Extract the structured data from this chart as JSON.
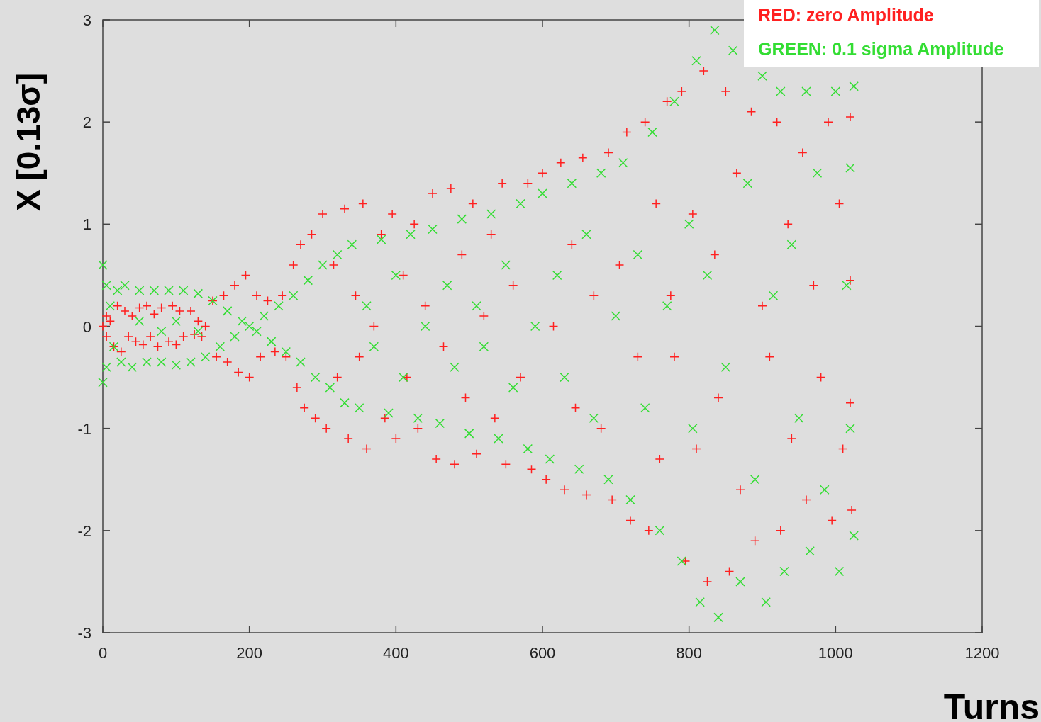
{
  "chart_data": {
    "type": "scatter",
    "xlabel": "Turns",
    "ylabel": "X [0.13σ]",
    "xlim": [
      0,
      1200
    ],
    "xticks": [
      0,
      200,
      400,
      600,
      800,
      1000,
      1200
    ],
    "ylim": [
      -3,
      3
    ],
    "yticks": [
      -3,
      -2,
      -1,
      0,
      1,
      2,
      3
    ],
    "grid": false,
    "legend": "top right",
    "series": [
      {
        "name": "RED: zero Amplitude",
        "color": "#ff2020",
        "marker": "cross",
        "x": [
          0,
          5,
          5,
          10,
          15,
          20,
          25,
          30,
          35,
          40,
          45,
          50,
          55,
          60,
          65,
          70,
          75,
          80,
          90,
          95,
          100,
          105,
          110,
          120,
          125,
          130,
          135,
          140,
          150,
          155,
          165,
          170,
          180,
          185,
          195,
          200,
          210,
          215,
          225,
          235,
          245,
          250,
          260,
          265,
          270,
          275,
          285,
          290,
          300,
          305,
          315,
          320,
          330,
          335,
          345,
          350,
          355,
          360,
          370,
          380,
          385,
          395,
          400,
          410,
          415,
          425,
          430,
          440,
          450,
          455,
          465,
          475,
          480,
          490,
          495,
          505,
          510,
          520,
          530,
          535,
          545,
          550,
          560,
          570,
          580,
          585,
          600,
          605,
          615,
          625,
          630,
          640,
          645,
          655,
          660,
          670,
          680,
          690,
          695,
          705,
          715,
          720,
          730,
          740,
          745,
          755,
          760,
          770,
          775,
          780,
          790,
          795,
          805,
          810,
          820,
          825,
          835,
          840,
          850,
          855,
          865,
          870,
          885,
          890,
          900,
          910,
          920,
          925,
          935,
          940,
          955,
          960,
          970,
          980,
          990,
          995,
          1005,
          1010,
          1020,
          1022,
          1020,
          1020
        ],
        "values": [
          0,
          0.1,
          -0.1,
          0.05,
          -0.2,
          0.2,
          -0.25,
          0.15,
          -0.1,
          0.1,
          -0.15,
          0.18,
          -0.18,
          0.2,
          -0.1,
          0.12,
          -0.2,
          0.18,
          -0.15,
          0.2,
          -0.18,
          0.15,
          -0.1,
          0.15,
          -0.08,
          0.05,
          -0.1,
          0,
          0.25,
          -0.3,
          0.3,
          -0.35,
          0.4,
          -0.45,
          0.5,
          -0.5,
          0.3,
          -0.3,
          0.25,
          -0.25,
          0.3,
          -0.3,
          0.6,
          -0.6,
          0.8,
          -0.8,
          0.9,
          -0.9,
          1.1,
          -1,
          0.6,
          -0.5,
          1.15,
          -1.1,
          0.3,
          -0.3,
          1.2,
          -1.2,
          0,
          0.9,
          -0.9,
          1.1,
          -1.1,
          0.5,
          -0.5,
          1,
          -1,
          0.2,
          1.3,
          -1.3,
          -0.2,
          1.35,
          -1.35,
          0.7,
          -0.7,
          1.2,
          -1.25,
          0.1,
          0.9,
          -0.9,
          1.4,
          -1.35,
          0.4,
          -0.5,
          1.4,
          -1.4,
          1.5,
          -1.5,
          0,
          1.6,
          -1.6,
          0.8,
          -0.8,
          1.65,
          -1.65,
          0.3,
          -1,
          1.7,
          -1.7,
          0.6,
          1.9,
          -1.9,
          -0.3,
          2,
          -2,
          1.2,
          -1.3,
          2.2,
          0.3,
          -0.3,
          2.3,
          -2.3,
          1.1,
          -1.2,
          2.5,
          -2.5,
          0.7,
          -0.7,
          2.3,
          -2.4,
          1.5,
          -1.6,
          2.1,
          -2.1,
          0.2,
          -0.3,
          2,
          -2,
          1,
          -1.1,
          1.7,
          -1.7,
          0.4,
          -0.5,
          2,
          -1.9,
          1.2,
          -1.2,
          2.05,
          -1.8,
          0.45,
          -0.75
        ]
      },
      {
        "name": "GREEN: 0.1 sigma Amplitude",
        "color": "#33dd33",
        "marker": "x",
        "x": [
          0,
          0,
          5,
          5,
          10,
          15,
          20,
          25,
          30,
          40,
          50,
          60,
          70,
          80,
          90,
          100,
          110,
          120,
          130,
          140,
          50,
          80,
          100,
          130,
          150,
          160,
          170,
          180,
          190,
          200,
          210,
          220,
          230,
          240,
          250,
          260,
          270,
          280,
          290,
          300,
          310,
          320,
          330,
          340,
          350,
          360,
          370,
          380,
          390,
          400,
          410,
          420,
          430,
          440,
          450,
          460,
          470,
          480,
          490,
          500,
          510,
          520,
          530,
          540,
          550,
          560,
          570,
          580,
          590,
          600,
          610,
          620,
          630,
          640,
          650,
          660,
          670,
          680,
          690,
          700,
          710,
          720,
          730,
          740,
          750,
          760,
          770,
          780,
          790,
          800,
          805,
          810,
          815,
          825,
          835,
          840,
          850,
          860,
          870,
          880,
          890,
          900,
          905,
          915,
          925,
          930,
          940,
          950,
          960,
          965,
          975,
          985,
          1000,
          1005,
          1015,
          1020,
          1020,
          1025,
          1025
        ],
        "values": [
          0.6,
          -0.55,
          0.4,
          -0.4,
          0.2,
          -0.2,
          0.35,
          -0.35,
          0.4,
          -0.4,
          0.35,
          -0.35,
          0.35,
          -0.35,
          0.35,
          -0.38,
          0.35,
          -0.35,
          0.32,
          -0.3,
          0.05,
          -0.05,
          0.05,
          -0.05,
          0.25,
          -0.2,
          0.15,
          -0.1,
          0.05,
          0,
          -0.05,
          0.1,
          -0.15,
          0.2,
          -0.25,
          0.3,
          -0.35,
          0.45,
          -0.5,
          0.6,
          -0.6,
          0.7,
          -0.75,
          0.8,
          -0.8,
          0.2,
          -0.2,
          0.85,
          -0.85,
          0.5,
          -0.5,
          0.9,
          -0.9,
          0,
          0.95,
          -0.95,
          0.4,
          -0.4,
          1.05,
          -1.05,
          0.2,
          -0.2,
          1.1,
          -1.1,
          0.6,
          -0.6,
          1.2,
          -1.2,
          0,
          1.3,
          -1.3,
          0.5,
          -0.5,
          1.4,
          -1.4,
          0.9,
          -0.9,
          1.5,
          -1.5,
          0.1,
          1.6,
          -1.7,
          0.7,
          -0.8,
          1.9,
          -2,
          0.2,
          2.2,
          -2.3,
          1,
          -1,
          2.6,
          -2.7,
          0.5,
          2.9,
          -2.85,
          -0.4,
          2.7,
          -2.5,
          1.4,
          -1.5,
          2.45,
          -2.7,
          0.3,
          2.3,
          -2.4,
          0.8,
          -0.9,
          2.3,
          -2.2,
          1.5,
          -1.6,
          2.3,
          -2.4,
          0.4,
          1.55,
          -1,
          2.35,
          -2.05
        ]
      }
    ]
  }
}
